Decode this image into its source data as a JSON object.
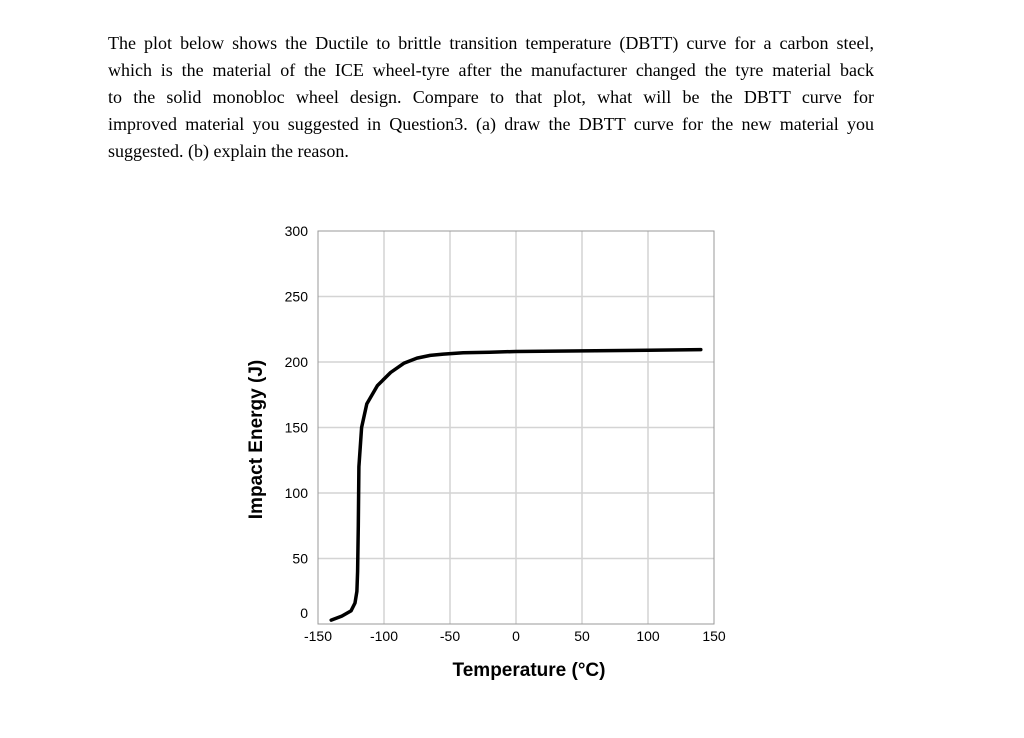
{
  "question": {
    "lines": [
      "The plot below shows the Ductile to brittle transition temperature (DBTT) curve for a carbon steel,",
      "which is the material of the ICE wheel-tyre after the manufacturer changed the tyre material  back",
      "to the solid monobloc wheel design. Compare to that plot, what will be the DBTT curve for",
      "improved material you suggested in Question3. (a) draw the DBTT curve for the new material you",
      "suggested. (b) explain the reason."
    ]
  },
  "chart_data": {
    "type": "line",
    "xlabel": "Temperature (°C)",
    "ylabel": "Impact Energy (J)",
    "xlim": [
      -150,
      150
    ],
    "ylim": [
      0,
      300
    ],
    "xticks": [
      "-150",
      "-100",
      "-50",
      "0",
      "50",
      "100",
      "150"
    ],
    "yticks": [
      "0",
      "50",
      "100",
      "150",
      "200",
      "250",
      "300"
    ],
    "grid": true,
    "series": [
      {
        "x": [
          -140,
          -132,
          -125,
          -122,
          -120.5,
          -120,
          -119.5,
          -119,
          -117,
          -113,
          -105,
          -95,
          -85,
          -75,
          -65,
          -55,
          -40,
          -20,
          0,
          50,
          100,
          140
        ],
        "y": [
          3,
          6,
          10,
          16,
          25,
          40,
          75,
          120,
          150,
          168,
          182,
          192,
          199,
          203,
          205,
          206,
          207,
          207.5,
          208,
          208.5,
          209,
          209.5
        ]
      }
    ]
  }
}
